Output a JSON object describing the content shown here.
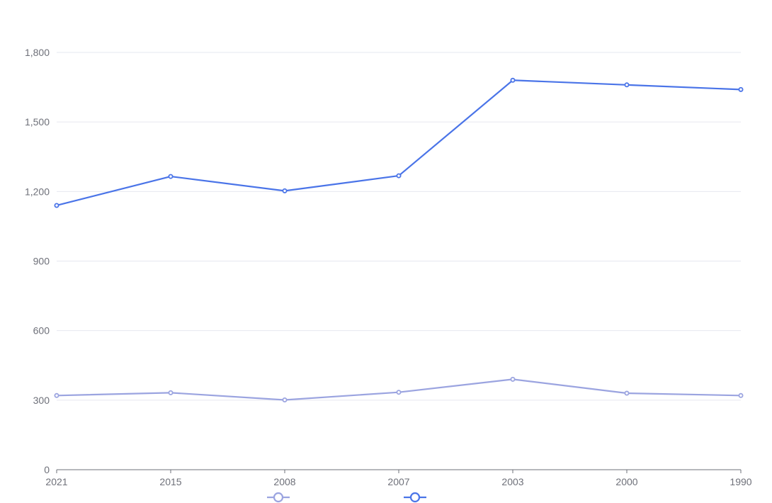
{
  "chart_data": {
    "type": "line",
    "title": "",
    "xlabel": "",
    "ylabel": "",
    "x": [
      "2021",
      "2015",
      "2008",
      "2007",
      "2003",
      "2000",
      "1990"
    ],
    "y_ticks": [
      0,
      300,
      600,
      900,
      1200,
      1500,
      1800
    ],
    "y_tick_labels": [
      "0",
      "300",
      "600",
      "900",
      "1,200",
      "1,500",
      "1,800"
    ],
    "ylim": [
      0,
      1800
    ],
    "grid": true,
    "legend_position": "bottom",
    "series": [
      {
        "color": "#9ba4e0",
        "values": [
          320,
          332,
          301,
          334,
          390,
          330,
          320
        ]
      },
      {
        "color": "#4a74e8",
        "values": [
          1140,
          1265,
          1203,
          1268,
          1680,
          1660,
          1640
        ]
      }
    ]
  }
}
